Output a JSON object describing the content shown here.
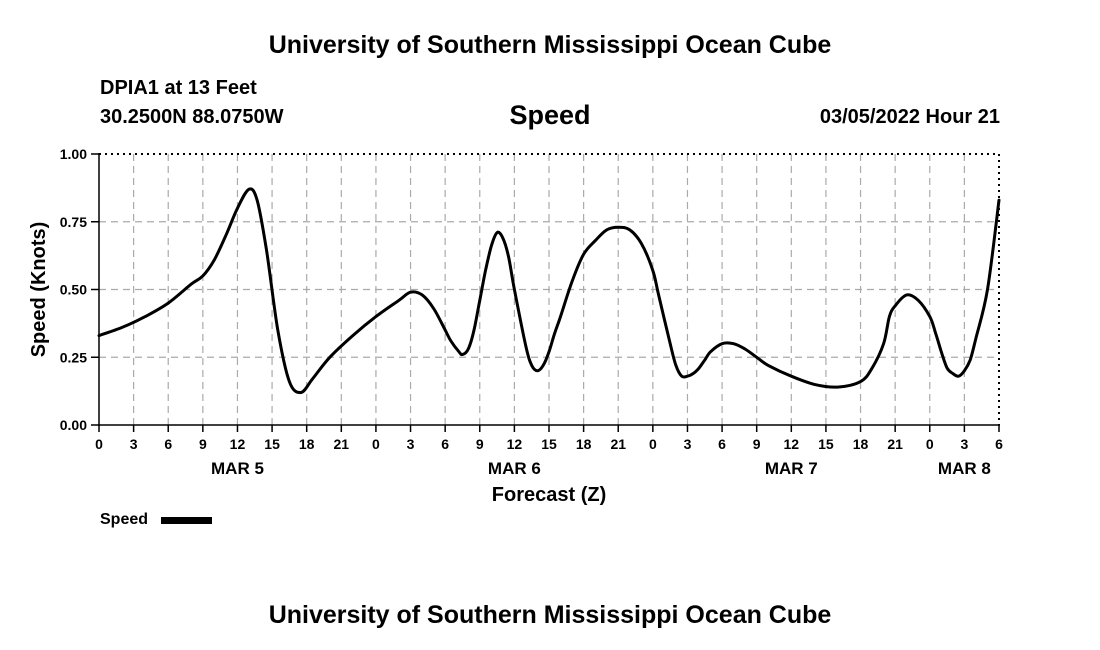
{
  "header": {
    "title": "University of Southern Mississippi Ocean Cube",
    "station": "DPIA1 at 13 Feet",
    "coordinates": "30.2500N  88.0750W",
    "datetime": "03/05/2022 Hour 21"
  },
  "footer": {
    "title": "University of Southern Mississippi Ocean Cube"
  },
  "chart_data": {
    "type": "line",
    "title": "Speed",
    "xlabel": "Forecast (Z)",
    "ylabel": "Speed (Knots)",
    "ylim": [
      0,
      1
    ],
    "xlim": [
      0,
      78
    ],
    "y_ticks": [
      "0.00",
      "0.25",
      "0.50",
      "0.75",
      "1.00"
    ],
    "y_tick_values": [
      0,
      0.25,
      0.5,
      0.75,
      1.0
    ],
    "x_tick_labels": [
      "0",
      "3",
      "6",
      "9",
      "12",
      "15",
      "18",
      "21",
      "0",
      "3",
      "6",
      "9",
      "12",
      "15",
      "18",
      "21",
      "0",
      "3",
      "6",
      "9",
      "12",
      "15",
      "18",
      "21",
      "0",
      "3",
      "6"
    ],
    "day_labels": [
      {
        "label": "MAR 5",
        "hour": 12
      },
      {
        "label": "MAR 6",
        "hour": 36
      },
      {
        "label": "MAR 7",
        "hour": 60
      },
      {
        "label": "MAR 8",
        "hour": 75
      }
    ],
    "grid": true,
    "legend": {
      "label": "Speed",
      "position": "bottom-left"
    },
    "series": [
      {
        "name": "Speed",
        "color": "#000000",
        "x": [
          0,
          2,
          4,
          6,
          8,
          9,
          10,
          11,
          12,
          13,
          13.7,
          14.5,
          15.5,
          16.5,
          17.5,
          18.5,
          20,
          22,
          24,
          26,
          27,
          28,
          29,
          30,
          30.5,
          31.2,
          31.5,
          32,
          32.5,
          33,
          33.5,
          34,
          34.5,
          35,
          35.5,
          36,
          37,
          37.5,
          38,
          38.5,
          39,
          39.5,
          40,
          41,
          42,
          43,
          44,
          45,
          46,
          47,
          48,
          48.5,
          49.5,
          50,
          50.5,
          51,
          51.5,
          52,
          52.5,
          53,
          54,
          55,
          56,
          57,
          58,
          60,
          62,
          64,
          66,
          67,
          68,
          68.5,
          69,
          70,
          71,
          72,
          72.5,
          73,
          73.5,
          74,
          74.5,
          75,
          75.5,
          76,
          77,
          78
        ],
        "values": [
          0.33,
          0.36,
          0.4,
          0.45,
          0.52,
          0.55,
          0.61,
          0.7,
          0.8,
          0.87,
          0.83,
          0.65,
          0.35,
          0.16,
          0.12,
          0.17,
          0.25,
          0.33,
          0.4,
          0.46,
          0.49,
          0.48,
          0.43,
          0.35,
          0.31,
          0.27,
          0.26,
          0.28,
          0.35,
          0.46,
          0.57,
          0.66,
          0.71,
          0.69,
          0.62,
          0.5,
          0.29,
          0.22,
          0.2,
          0.22,
          0.27,
          0.34,
          0.4,
          0.53,
          0.63,
          0.68,
          0.72,
          0.73,
          0.72,
          0.67,
          0.57,
          0.48,
          0.3,
          0.22,
          0.18,
          0.18,
          0.19,
          0.21,
          0.24,
          0.27,
          0.3,
          0.3,
          0.28,
          0.25,
          0.22,
          0.18,
          0.15,
          0.14,
          0.16,
          0.21,
          0.3,
          0.4,
          0.44,
          0.48,
          0.46,
          0.4,
          0.34,
          0.27,
          0.21,
          0.19,
          0.18,
          0.2,
          0.24,
          0.32,
          0.5,
          0.83
        ]
      }
    ]
  }
}
